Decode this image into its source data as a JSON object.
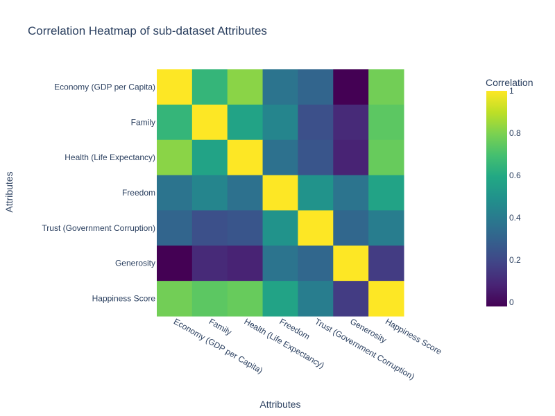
{
  "chart_data": {
    "type": "heatmap",
    "title": "Correlation Heatmap of sub-dataset Attributes",
    "xlabel": "Attributes",
    "ylabel": "Attributes",
    "x": [
      "Economy (GDP per Capita)",
      "Family",
      "Health (Life Expectancy)",
      "Freedom",
      "Trust (Government Corruption)",
      "Generosity",
      "Happiness Score"
    ],
    "y": [
      "Economy (GDP per Capita)",
      "Family",
      "Health (Life Expectancy)",
      "Freedom",
      "Trust (Government Corruption)",
      "Generosity",
      "Happiness Score"
    ],
    "z": [
      [
        1.0,
        0.65,
        0.82,
        0.37,
        0.31,
        -0.02,
        0.78
      ],
      [
        0.65,
        1.0,
        0.57,
        0.44,
        0.23,
        0.1,
        0.74
      ],
      [
        0.82,
        0.57,
        1.0,
        0.36,
        0.25,
        0.08,
        0.76
      ],
      [
        0.37,
        0.44,
        0.36,
        1.0,
        0.5,
        0.37,
        0.57
      ],
      [
        0.31,
        0.23,
        0.25,
        0.5,
        1.0,
        0.32,
        0.41
      ],
      [
        -0.02,
        0.1,
        0.08,
        0.37,
        0.32,
        1.0,
        0.16
      ],
      [
        0.78,
        0.74,
        0.76,
        0.57,
        0.41,
        0.16,
        1.0
      ]
    ],
    "colorscale": "viridis",
    "zrange": [
      -0.02,
      1.0
    ],
    "colorbar": {
      "title": "Correlation",
      "ticks": [
        0,
        0.2,
        0.4,
        0.6,
        0.8,
        1
      ],
      "tick_labels": [
        "0",
        "0.2",
        "0.4",
        "0.6",
        "0.8",
        "1"
      ]
    }
  }
}
